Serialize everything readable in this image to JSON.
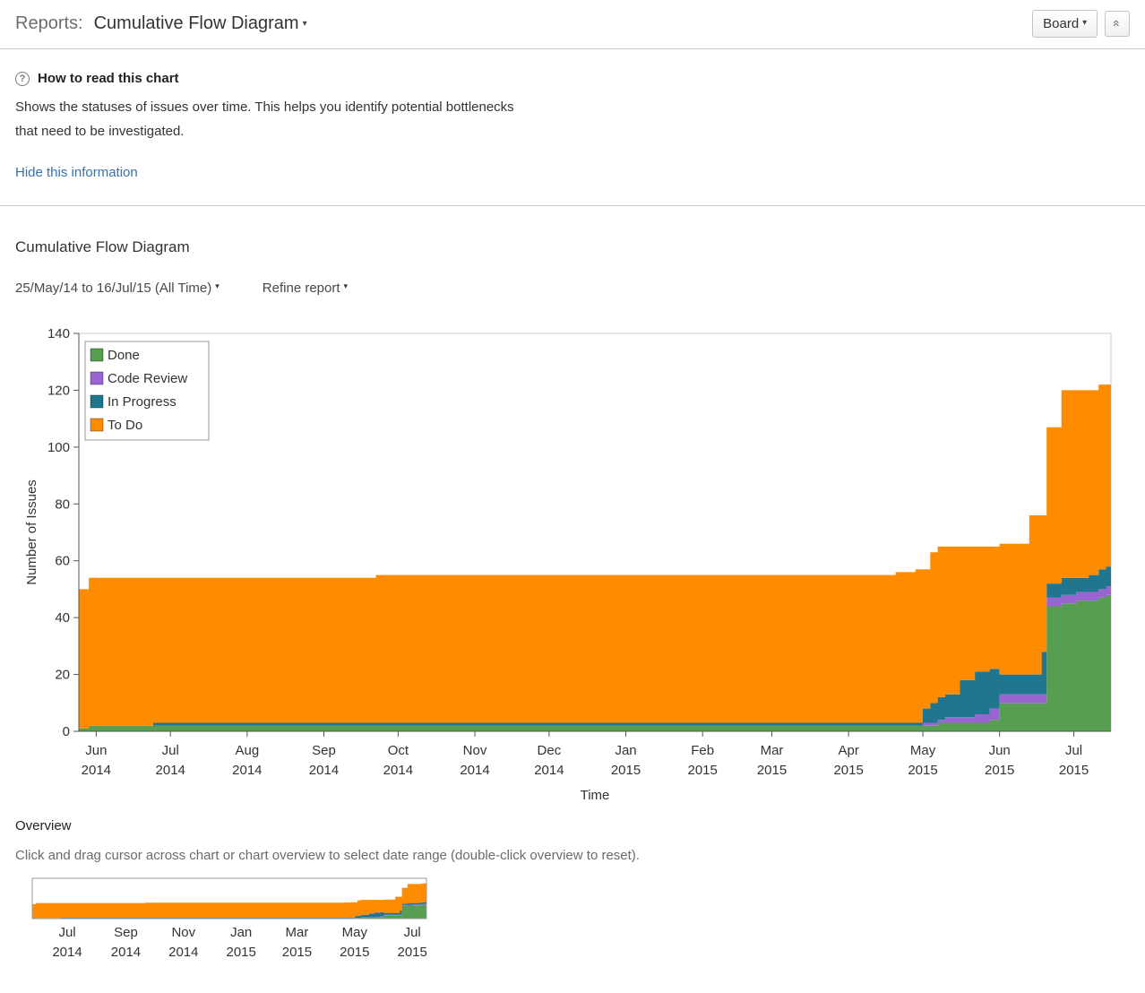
{
  "header": {
    "reports_label": "Reports:",
    "title": "Cumulative Flow Diagram",
    "board_button": "Board"
  },
  "icons": {
    "help": "?",
    "caret": "▾",
    "collapse": "«"
  },
  "help": {
    "title": "How to read this chart",
    "description": "Shows the statuses of issues over time. This helps you identify potential bottlenecks that need to be investigated.",
    "hide_link": "Hide this information"
  },
  "report": {
    "title": "Cumulative Flow Diagram",
    "date_range": "25/May/14 to 16/Jul/15 (All Time)",
    "refine": "Refine report"
  },
  "overview_section": {
    "title": "Overview",
    "instruction": "Click and drag cursor across chart or chart overview to select date range (double-click overview to reset)."
  },
  "chart_data": {
    "type": "area",
    "stacked": true,
    "title": "Cumulative Flow Diagram",
    "xlabel": "Time",
    "ylabel": "Number of Issues",
    "ylim": [
      0,
      140
    ],
    "yticks": [
      0,
      20,
      40,
      60,
      80,
      100,
      120,
      140
    ],
    "grid": false,
    "legend_position": "top-left",
    "x_start_label": "25/May/14",
    "x_end_label": "16/Jul/15",
    "x_total_days": 417,
    "x_days": [
      0,
      4,
      30,
      120,
      250,
      310,
      330,
      338,
      341,
      344,
      347,
      350,
      356,
      362,
      368,
      372,
      378,
      384,
      387,
      389,
      391,
      393,
      397,
      399,
      403,
      408,
      412,
      415,
      417
    ],
    "series": [
      {
        "name": "Done",
        "color": "#589e52",
        "values": [
          1,
          2,
          2,
          2,
          2,
          2,
          2,
          2,
          2,
          2,
          3,
          3,
          3,
          3,
          4,
          10,
          10,
          10,
          10,
          10,
          44,
          44,
          45,
          45,
          46,
          46,
          47,
          48,
          48
        ]
      },
      {
        "name": "Code Review",
        "color": "#9a64d2",
        "values": [
          0,
          0,
          0,
          0,
          0,
          0,
          0,
          0,
          1,
          1,
          1,
          2,
          2,
          3,
          4,
          3,
          3,
          3,
          3,
          3,
          3,
          3,
          3,
          3,
          3,
          3,
          3,
          3,
          3
        ]
      },
      {
        "name": "In Progress",
        "color": "#21768f",
        "values": [
          0,
          0,
          1,
          1,
          1,
          1,
          1,
          1,
          5,
          7,
          8,
          8,
          13,
          15,
          14,
          7,
          7,
          7,
          7,
          15,
          5,
          5,
          6,
          6,
          5,
          6,
          7,
          7,
          7
        ]
      },
      {
        "name": "To Do",
        "color": "#ff8b00",
        "values": [
          49,
          52,
          51,
          52,
          52,
          52,
          53,
          54,
          49,
          53,
          53,
          52,
          47,
          44,
          43,
          46,
          46,
          56,
          56,
          48,
          55,
          55,
          66,
          66,
          66,
          65,
          65,
          64,
          65
        ]
      }
    ],
    "main_xticks": [
      {
        "t": 7,
        "line1": "Jun",
        "line2": "2014"
      },
      {
        "t": 37,
        "line1": "Jul",
        "line2": "2014"
      },
      {
        "t": 68,
        "line1": "Aug",
        "line2": "2014"
      },
      {
        "t": 99,
        "line1": "Sep",
        "line2": "2014"
      },
      {
        "t": 129,
        "line1": "Oct",
        "line2": "2014"
      },
      {
        "t": 160,
        "line1": "Nov",
        "line2": "2014"
      },
      {
        "t": 190,
        "line1": "Dec",
        "line2": "2014"
      },
      {
        "t": 221,
        "line1": "Jan",
        "line2": "2015"
      },
      {
        "t": 252,
        "line1": "Feb",
        "line2": "2015"
      },
      {
        "t": 280,
        "line1": "Mar",
        "line2": "2015"
      },
      {
        "t": 311,
        "line1": "Apr",
        "line2": "2015"
      },
      {
        "t": 341,
        "line1": "May",
        "line2": "2015"
      },
      {
        "t": 372,
        "line1": "Jun",
        "line2": "2015"
      },
      {
        "t": 402,
        "line1": "Jul",
        "line2": "2015"
      }
    ],
    "overview_xticks": [
      {
        "t": 37,
        "line1": "Jul",
        "line2": "2014"
      },
      {
        "t": 99,
        "line1": "Sep",
        "line2": "2014"
      },
      {
        "t": 160,
        "line1": "Nov",
        "line2": "2014"
      },
      {
        "t": 221,
        "line1": "Jan",
        "line2": "2015"
      },
      {
        "t": 280,
        "line1": "Mar",
        "line2": "2015"
      },
      {
        "t": 341,
        "line1": "May",
        "line2": "2015"
      },
      {
        "t": 402,
        "line1": "Jul",
        "line2": "2015"
      }
    ]
  }
}
